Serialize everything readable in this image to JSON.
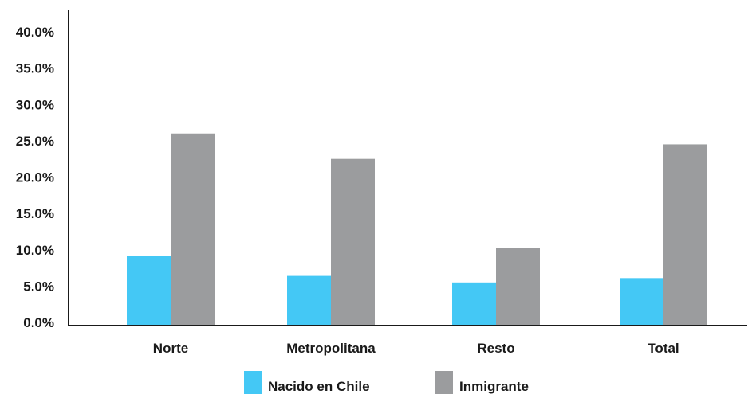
{
  "chart_data": {
    "type": "bar",
    "categories": [
      "Norte",
      "Metropolitana",
      "Resto",
      "Total"
    ],
    "series": [
      {
        "name": "Nacido en Chile",
        "color": "#44c8f5",
        "values": [
          9.1,
          6.4,
          5.5,
          6.1
        ]
      },
      {
        "name": "Inmigrante",
        "color": "#9b9c9e",
        "values": [
          26.0,
          22.5,
          10.2,
          24.5
        ]
      }
    ],
    "ylim": [
      0,
      40
    ],
    "yticks": [
      "0.0%",
      "5.0%",
      "10.0%",
      "15.0%",
      "20.0%",
      "25.0%",
      "30.0%",
      "35.0%",
      "40.0%"
    ],
    "ytick_values": [
      0,
      5,
      10,
      15,
      20,
      25,
      30,
      35,
      40
    ],
    "grid": false,
    "legend_position": "bottom-center"
  }
}
